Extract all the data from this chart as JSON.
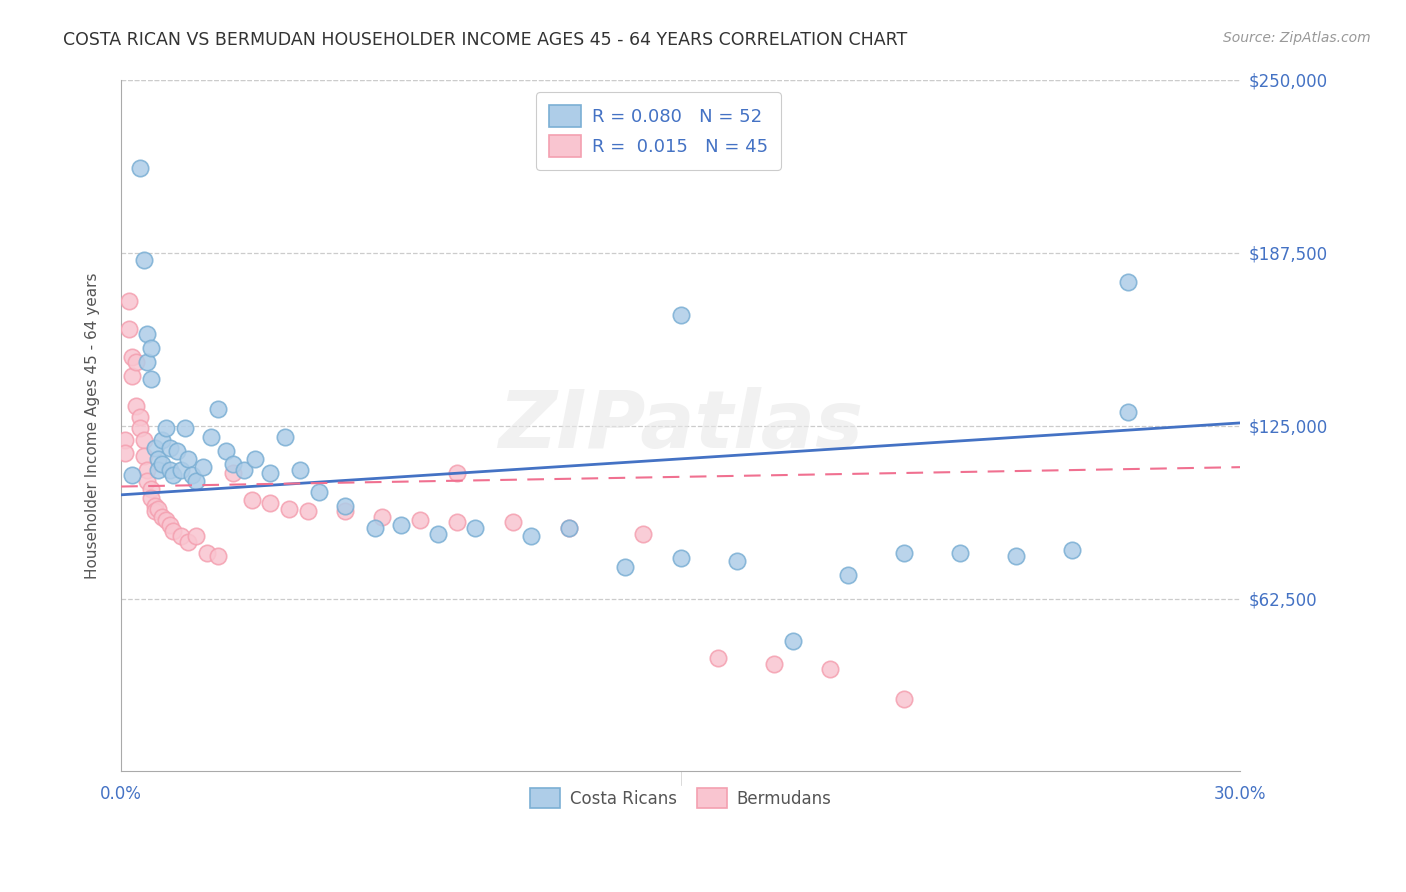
{
  "title": "COSTA RICAN VS BERMUDAN HOUSEHOLDER INCOME AGES 45 - 64 YEARS CORRELATION CHART",
  "source": "Source: ZipAtlas.com",
  "ylabel": "Householder Income Ages 45 - 64 years",
  "xlim": [
    0.0,
    0.3
  ],
  "ylim": [
    0,
    250000
  ],
  "background_color": "#ffffff",
  "grid_color": "#cccccc",
  "watermark": "ZIPatlas",
  "legend_blue_r": "0.080",
  "legend_blue_n": "52",
  "legend_pink_r": "0.015",
  "legend_pink_n": "45",
  "blue_color": "#7bafd4",
  "pink_color": "#f4a0b0",
  "blue_fill": "#aecde8",
  "pink_fill": "#f9c5d0",
  "blue_line_color": "#4472c4",
  "pink_line_color": "#f07090",
  "blue_x": [
    0.003,
    0.005,
    0.006,
    0.007,
    0.007,
    0.008,
    0.008,
    0.009,
    0.01,
    0.01,
    0.011,
    0.011,
    0.012,
    0.013,
    0.013,
    0.014,
    0.015,
    0.016,
    0.017,
    0.018,
    0.019,
    0.02,
    0.022,
    0.024,
    0.026,
    0.028,
    0.03,
    0.033,
    0.036,
    0.04,
    0.044,
    0.048,
    0.053,
    0.06,
    0.068,
    0.075,
    0.085,
    0.095,
    0.11,
    0.12,
    0.135,
    0.15,
    0.165,
    0.18,
    0.195,
    0.21,
    0.225,
    0.24,
    0.255,
    0.27,
    0.15,
    0.27
  ],
  "blue_y": [
    107000,
    218000,
    185000,
    158000,
    148000,
    142000,
    153000,
    117000,
    113000,
    109000,
    120000,
    111000,
    124000,
    117000,
    109000,
    107000,
    116000,
    109000,
    124000,
    113000,
    107000,
    105000,
    110000,
    121000,
    131000,
    116000,
    111000,
    109000,
    113000,
    108000,
    121000,
    109000,
    101000,
    96000,
    88000,
    89000,
    86000,
    88000,
    85000,
    88000,
    74000,
    77000,
    76000,
    47000,
    71000,
    79000,
    79000,
    78000,
    80000,
    177000,
    165000,
    130000
  ],
  "pink_x": [
    0.001,
    0.001,
    0.002,
    0.002,
    0.003,
    0.003,
    0.004,
    0.004,
    0.005,
    0.005,
    0.006,
    0.006,
    0.007,
    0.007,
    0.008,
    0.008,
    0.009,
    0.009,
    0.01,
    0.011,
    0.012,
    0.013,
    0.014,
    0.016,
    0.018,
    0.02,
    0.023,
    0.026,
    0.03,
    0.035,
    0.04,
    0.045,
    0.05,
    0.06,
    0.07,
    0.08,
    0.09,
    0.105,
    0.12,
    0.14,
    0.16,
    0.175,
    0.19,
    0.21,
    0.09
  ],
  "pink_y": [
    120000,
    115000,
    170000,
    160000,
    150000,
    143000,
    148000,
    132000,
    128000,
    124000,
    120000,
    114000,
    109000,
    105000,
    102000,
    99000,
    96000,
    94000,
    95000,
    92000,
    91000,
    89000,
    87000,
    85000,
    83000,
    85000,
    79000,
    78000,
    108000,
    98000,
    97000,
    95000,
    94000,
    94000,
    92000,
    91000,
    90000,
    90000,
    88000,
    86000,
    41000,
    39000,
    37000,
    26000,
    108000
  ],
  "blue_line_x": [
    0.0,
    0.3
  ],
  "blue_line_y": [
    100000,
    126000
  ],
  "pink_line_x": [
    0.0,
    0.3
  ],
  "pink_line_y": [
    103000,
    110000
  ]
}
